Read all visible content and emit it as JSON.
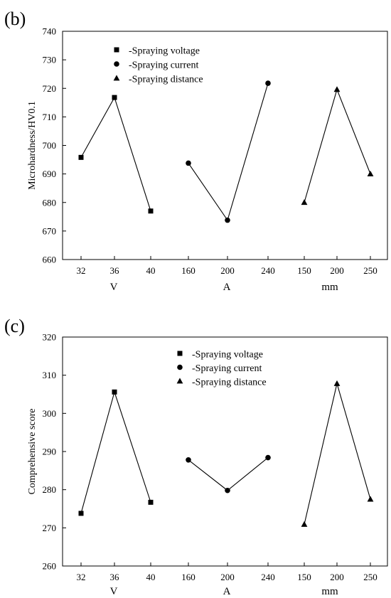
{
  "chart_data": [
    {
      "panel_label": "(b)",
      "type": "line",
      "ylabel": "Microhardness/HV0.1",
      "ylim": [
        660,
        740
      ],
      "yticks": [
        660,
        670,
        680,
        690,
        700,
        710,
        720,
        730,
        740
      ],
      "legend_position": "top-left",
      "grid": false,
      "groups": [
        {
          "unit": "V",
          "categories": [
            "32",
            "36",
            "40"
          ],
          "series": "-Spraying voltage",
          "marker": "square",
          "values": [
            695.8,
            716.8,
            677.0
          ]
        },
        {
          "unit": "A",
          "categories": [
            "160",
            "200",
            "240"
          ],
          "series": "-Spraying current",
          "marker": "circle",
          "values": [
            693.8,
            673.8,
            721.8
          ]
        },
        {
          "unit": "mm",
          "categories": [
            "150",
            "200",
            "250"
          ],
          "series": "-Spraying distance",
          "marker": "triangle",
          "values": [
            680.0,
            719.6,
            690.0
          ]
        }
      ],
      "legend": [
        {
          "marker": "square",
          "label": "-Spraying voltage"
        },
        {
          "marker": "circle",
          "label": "-Spraying current"
        },
        {
          "marker": "triangle",
          "label": "-Spraying distance"
        }
      ]
    },
    {
      "panel_label": "(c)",
      "type": "line",
      "ylabel": "Comprehensive score",
      "ylim": [
        260,
        320
      ],
      "yticks": [
        260,
        270,
        280,
        290,
        300,
        310,
        320
      ],
      "legend_position": "top-center",
      "grid": false,
      "groups": [
        {
          "unit": "V",
          "categories": [
            "32",
            "36",
            "40"
          ],
          "series": "-Spraying voltage",
          "marker": "square",
          "values": [
            273.8,
            305.6,
            276.7
          ]
        },
        {
          "unit": "A",
          "categories": [
            "160",
            "200",
            "240"
          ],
          "series": "-Spraying current",
          "marker": "circle",
          "values": [
            287.8,
            279.8,
            288.4
          ]
        },
        {
          "unit": "mm",
          "categories": [
            "150",
            "200",
            "250"
          ],
          "series": "-Spraying distance",
          "marker": "triangle",
          "values": [
            270.9,
            307.8,
            277.5
          ]
        }
      ],
      "legend": [
        {
          "marker": "square",
          "label": "-Spraying voltage"
        },
        {
          "marker": "circle",
          "label": "-Spraying current"
        },
        {
          "marker": "triangle",
          "label": "-Spraying distance"
        }
      ]
    }
  ]
}
